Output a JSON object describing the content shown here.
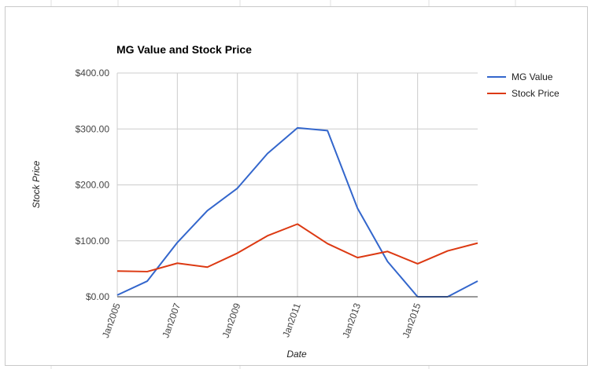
{
  "chart_data": {
    "type": "line",
    "title": "MG Value and Stock Price",
    "xlabel": "Date",
    "ylabel": "Stock Price",
    "x": [
      2005,
      2006,
      2007,
      2008,
      2009,
      2010,
      2011,
      2012,
      2013,
      2014,
      2015,
      2016,
      2017
    ],
    "x_tick_labels": [
      "Jan2005",
      "Jan2007",
      "Jan2009",
      "Jan2011",
      "Jan2013",
      "Jan2015"
    ],
    "x_tick_values": [
      2005,
      2007,
      2009,
      2011,
      2013,
      2015
    ],
    "xlim": [
      2005,
      2017
    ],
    "y_tick_labels": [
      "$0.00",
      "$100.00",
      "$200.00",
      "$300.00",
      "$400.00"
    ],
    "y_tick_values": [
      0,
      100,
      200,
      300,
      400
    ],
    "ylim": [
      0,
      400
    ],
    "grid": true,
    "legend_position": "right",
    "series": [
      {
        "name": "MG Value",
        "color": "#3366cc",
        "values": [
          3,
          28,
          97,
          154,
          194,
          256,
          302,
          297,
          158,
          63,
          0,
          0,
          28
        ]
      },
      {
        "name": "Stock Price",
        "color": "#dc3912",
        "values": [
          46,
          45,
          60,
          53,
          78,
          109,
          130,
          95,
          70,
          81,
          59,
          82,
          96
        ]
      }
    ]
  }
}
